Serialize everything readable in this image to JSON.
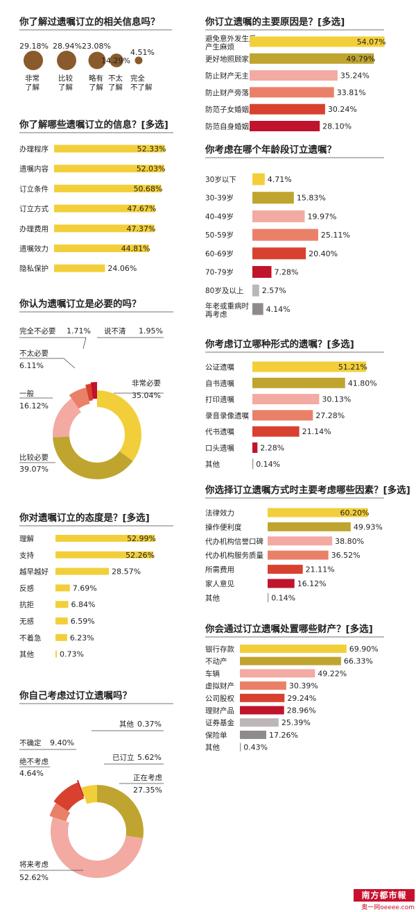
{
  "colors": {
    "yellow": "#f2cf3a",
    "olive": "#bfa52f",
    "pink": "#f2aaa2",
    "salmon": "#ea8068",
    "red": "#d8412f",
    "crimson": "#c0142c",
    "grey": "#bdb6b8",
    "darkgrey": "#8f8a8c",
    "brown": "#8a5a2c"
  },
  "logo": {
    "text": "南方都市報",
    "sub": "奥一网oeeee.com"
  },
  "chart_data": [
    {
      "id": "awareness",
      "type": "bubble",
      "title": "你了解过遗嘱订立的相关信息吗？",
      "categories": [
        "非常\n了解",
        "比较\n了解",
        "略有\n了解",
        "不太\n了解",
        "完全\n不了解"
      ],
      "value_labels": [
        "29.18%",
        "28.94%",
        "23.08%",
        "14.29%",
        "4.51%"
      ],
      "values": [
        29.18,
        28.94,
        23.08,
        14.29,
        4.51
      ]
    },
    {
      "id": "info_known",
      "type": "bar",
      "title": "你了解哪些遗嘱订立的信息？[多选]",
      "categories": [
        "办理程序",
        "遗嘱内容",
        "订立条件",
        "订立方式",
        "办理费用",
        "遗嘱效力",
        "隐私保护"
      ],
      "values": [
        52.33,
        52.03,
        50.68,
        47.67,
        47.37,
        44.81,
        24.06
      ],
      "value_labels": [
        "52.33%",
        "52.03%",
        "50.68%",
        "47.67%",
        "47.37%",
        "44.81%",
        "24.06%"
      ],
      "colors": [
        "#f2cf3a",
        "#f2cf3a",
        "#f2cf3a",
        "#f2cf3a",
        "#f2cf3a",
        "#f2cf3a",
        "#f2cf3a"
      ]
    },
    {
      "id": "necessary",
      "type": "pie",
      "title": "你认为遗嘱订立是必要的吗？",
      "categories": [
        "非常必要",
        "比较必要",
        "一般",
        "不太必要",
        "完全不必要",
        "说不清"
      ],
      "values": [
        35.04,
        39.07,
        16.12,
        6.11,
        1.71,
        1.95
      ],
      "value_labels": [
        "35.04%",
        "39.07%",
        "16.12%",
        "6.11%",
        "1.71%",
        "1.95%"
      ],
      "colors": [
        "#f2cf3a",
        "#bfa52f",
        "#f2aaa2",
        "#ea8068",
        "#d8412f",
        "#c0142c"
      ]
    },
    {
      "id": "attitude",
      "type": "bar",
      "title": "你对遗嘱订立的态度是？[多选]",
      "categories": [
        "理解",
        "支持",
        "越早越好",
        "反感",
        "抗拒",
        "无感",
        "不着急",
        "其他"
      ],
      "values": [
        52.99,
        52.26,
        28.57,
        7.69,
        6.84,
        6.59,
        6.23,
        0.73
      ],
      "value_labels": [
        "52.99%",
        "52.26%",
        "28.57%",
        "7.69%",
        "6.84%",
        "6.59%",
        "6.23%",
        "0.73%"
      ],
      "colors": [
        "#f2cf3a",
        "#f2cf3a",
        "#f2cf3a",
        "#f2cf3a",
        "#f2cf3a",
        "#f2cf3a",
        "#f2cf3a",
        "#f2cf3a"
      ]
    },
    {
      "id": "considered",
      "type": "pie",
      "title": "你自己考虑过订立遗嘱吗？",
      "categories": [
        "正在考虑",
        "将来考虑",
        "绝不考虑",
        "不确定",
        "其他",
        "已订立"
      ],
      "values": [
        27.35,
        52.62,
        4.64,
        9.4,
        0.37,
        5.62
      ],
      "value_labels": [
        "27.35%",
        "52.62%",
        "4.64%",
        "9.40%",
        "0.37%",
        "5.62%"
      ],
      "colors": [
        "#bfa52f",
        "#f2aaa2",
        "#ea8068",
        "#d8412f",
        "#c0142c",
        "#f2cf3a"
      ]
    },
    {
      "id": "reasons",
      "type": "bar",
      "title": "你订立遗嘱的主要原因是？[多选]",
      "categories": [
        "避免意外发生后\n产生麻烦",
        "更好地照顾家人",
        "防止财产无主",
        "防止财产旁落",
        "防范子女婚姻风险",
        "防范自身婚姻风险"
      ],
      "values": [
        54.07,
        49.79,
        35.24,
        33.81,
        30.24,
        28.1
      ],
      "value_labels": [
        "54.07%",
        "49.79%",
        "35.24%",
        "33.81%",
        "30.24%",
        "28.10%"
      ],
      "colors": [
        "#f2cf3a",
        "#bfa52f",
        "#f2aaa2",
        "#ea8068",
        "#d8412f",
        "#c0142c"
      ]
    },
    {
      "id": "age",
      "type": "bar",
      "title": "你考虑在哪个年龄段订立遗嘱？",
      "categories": [
        "30岁以下",
        "30-39岁",
        "40-49岁",
        "50-59岁",
        "60-69岁",
        "70-79岁",
        "80岁及以上",
        "年老或重病时\n再考虑"
      ],
      "values": [
        4.71,
        15.83,
        19.97,
        25.11,
        20.4,
        7.28,
        2.57,
        4.14
      ],
      "value_labels": [
        "4.71%",
        "15.83%",
        "19.97%",
        "25.11%",
        "20.40%",
        "7.28%",
        "2.57%",
        "4.14%"
      ],
      "colors": [
        "#f2cf3a",
        "#bfa52f",
        "#f2aaa2",
        "#ea8068",
        "#d8412f",
        "#c0142c",
        "#bdb6b8",
        "#8f8a8c"
      ]
    },
    {
      "id": "form",
      "type": "bar",
      "title": "你考虑订立哪种形式的遗嘱？[多选]",
      "categories": [
        "公证遗嘱",
        "自书遗嘱",
        "打印遗嘱",
        "录音录像遗嘱",
        "代书遗嘱",
        "口头遗嘱",
        "其他"
      ],
      "values": [
        51.21,
        41.8,
        30.13,
        27.28,
        21.14,
        2.28,
        0.14
      ],
      "value_labels": [
        "51.21%",
        "41.80%",
        "30.13%",
        "27.28%",
        "21.14%",
        "2.28%",
        "0.14%"
      ],
      "colors": [
        "#f2cf3a",
        "#bfa52f",
        "#f2aaa2",
        "#ea8068",
        "#d8412f",
        "#c0142c",
        "#8f8a8c"
      ]
    },
    {
      "id": "factors",
      "type": "bar",
      "title": "你选择订立遗嘱方式时主要考虑哪些因素？[多选]",
      "categories": [
        "法律效力",
        "操作便利度",
        "代办机构信誉口碑",
        "代办机构服务质量",
        "所需费用",
        "家人意见",
        "其他"
      ],
      "values": [
        60.2,
        49.93,
        38.8,
        36.52,
        21.11,
        16.12,
        0.14
      ],
      "value_labels": [
        "60.20%",
        "49.93%",
        "38.80%",
        "36.52%",
        "21.11%",
        "16.12%",
        "0.14%"
      ],
      "colors": [
        "#f2cf3a",
        "#bfa52f",
        "#f2aaa2",
        "#ea8068",
        "#d8412f",
        "#c0142c",
        "#8f8a8c"
      ]
    },
    {
      "id": "assets",
      "type": "bar",
      "title": "你会通过订立遗嘱处置哪些财产？[多选]",
      "categories": [
        "银行存款",
        "不动产",
        "车辆",
        "虚拟财产",
        "公司股权",
        "理财产品",
        "证券基金",
        "保险单",
        "其他"
      ],
      "values": [
        69.9,
        66.33,
        49.22,
        30.39,
        29.24,
        28.96,
        25.39,
        17.26,
        0.43
      ],
      "value_labels": [
        "69.90%",
        "66.33%",
        "49.22%",
        "30.39%",
        "29.24%",
        "28.96%",
        "25.39%",
        "17.26%",
        "0.43%"
      ],
      "colors": [
        "#f2cf3a",
        "#bfa52f",
        "#f2aaa2",
        "#ea8068",
        "#d8412f",
        "#c0142c",
        "#bdb6b8",
        "#8f8a8c",
        "#8f8a8c"
      ]
    }
  ]
}
